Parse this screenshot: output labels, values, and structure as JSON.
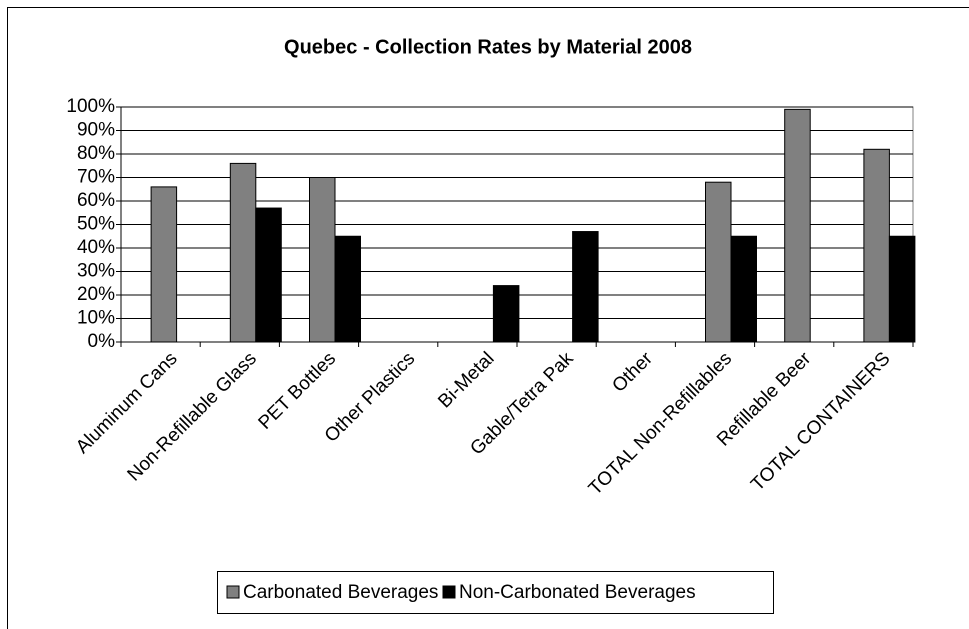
{
  "chart_data": {
    "type": "bar",
    "title": "Quebec  - Collection Rates by Material 2008",
    "categories": [
      "Aluminum Cans",
      "Non-Refillable Glass",
      "PET Bottles",
      "Other Plastics",
      "Bi-Metal",
      "Gable/Tetra Pak",
      "Other",
      "TOTAL Non-Refillables",
      "Refillable Beer",
      "TOTAL CONTAINERS"
    ],
    "series": [
      {
        "name": "Carbonated Beverages",
        "color": "#808080",
        "values": [
          66,
          76,
          70,
          null,
          null,
          null,
          null,
          68,
          99,
          82
        ]
      },
      {
        "name": "Non-Carbonated Beverages",
        "color": "#000000",
        "values": [
          null,
          57,
          45,
          null,
          24,
          47,
          null,
          45,
          null,
          45
        ]
      }
    ],
    "ylim": [
      0,
      100
    ],
    "yticks": [
      {
        "value": 0,
        "label": "0%"
      },
      {
        "value": 10,
        "label": "10%"
      },
      {
        "value": 20,
        "label": "20%"
      },
      {
        "value": 30,
        "label": "30%"
      },
      {
        "value": 40,
        "label": "40%"
      },
      {
        "value": 50,
        "label": "50%"
      },
      {
        "value": 60,
        "label": "60%"
      },
      {
        "value": 70,
        "label": "70%"
      },
      {
        "value": 80,
        "label": "80%"
      },
      {
        "value": 90,
        "label": "90%"
      },
      {
        "value": 100,
        "label": "100%"
      }
    ],
    "grid": true,
    "legend": "bottom"
  }
}
